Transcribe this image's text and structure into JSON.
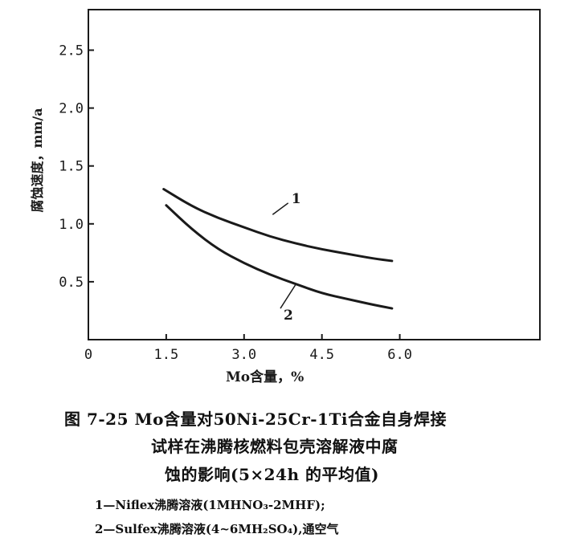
{
  "chart_data": {
    "type": "line",
    "xlabel": "Mo含量，%",
    "ylabel": "腐蚀速度，mm/a",
    "xlim": [
      0,
      8.7
    ],
    "ylim": [
      0,
      2.85
    ],
    "x_ticks": [
      "0",
      "1.5",
      "3.0",
      "4.5",
      "6.0"
    ],
    "y_ticks": [
      "0.5",
      "1.0",
      "1.5",
      "2.0",
      "2.5"
    ],
    "grid": false,
    "series": [
      {
        "name": "1",
        "x": [
          1.45,
          2.0,
          2.5,
          3.0,
          3.5,
          4.0,
          4.5,
          5.0,
          5.5,
          5.85
        ],
        "y": [
          1.3,
          1.15,
          1.05,
          0.97,
          0.89,
          0.83,
          0.78,
          0.74,
          0.7,
          0.68
        ]
      },
      {
        "name": "2",
        "x": [
          1.5,
          2.0,
          2.5,
          3.0,
          3.5,
          4.0,
          4.5,
          5.0,
          5.5,
          5.85
        ],
        "y": [
          1.16,
          0.95,
          0.78,
          0.66,
          0.56,
          0.48,
          0.4,
          0.35,
          0.3,
          0.27
        ]
      }
    ]
  },
  "caption": {
    "title_line1": "图 7-25 Mo含量对50Ni-25Cr-1Ti合金自身焊接",
    "title_line2": "试样在沸腾核燃料包壳溶解液中腐",
    "title_line3": "蚀的影响(5×24h 的平均值)",
    "note1": "1—Niflex沸腾溶液(1MHNO₃-2MHF);",
    "note2": "2—Sulfex沸腾溶液(4~6MH₂SO₄),通空气"
  }
}
